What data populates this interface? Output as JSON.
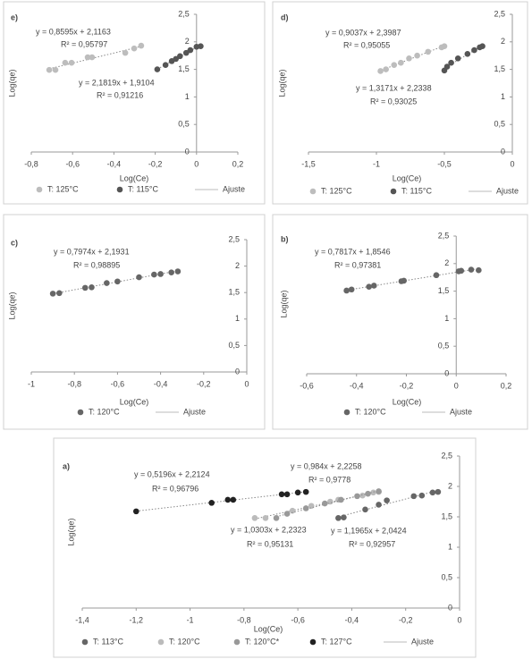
{
  "chart_data": [
    {
      "type": "scatter",
      "panel_label": "e)",
      "xlabel": "Log(Ce)",
      "ylabel": "Log(qe)",
      "xlim": [
        -0.8,
        0.2
      ],
      "ylim": [
        0,
        2.5
      ],
      "xticks": [
        {
          "value": -0.8,
          "label": "-0,8"
        },
        {
          "value": -0.6,
          "label": "-0,6"
        },
        {
          "value": -0.4,
          "label": "-0,4"
        },
        {
          "value": -0.2,
          "label": "-0,2"
        },
        0,
        {
          "value": 0.2,
          "label": "0,2"
        }
      ],
      "yticks": [
        0,
        {
          "value": 0.5,
          "label": "0,5"
        },
        1,
        {
          "value": 1.5,
          "label": "1,5"
        },
        2,
        {
          "value": 2.5,
          "label": "2,5"
        }
      ],
      "series": [
        {
          "name": "T: 125°C",
          "color": "#bdbdbd",
          "x": [
            -0.713,
            -0.683,
            -0.636,
            -0.605,
            -0.527,
            -0.506,
            -0.345,
            -0.302,
            -0.268
          ],
          "values": [
            1.49,
            1.49,
            1.62,
            1.62,
            1.72,
            1.72,
            1.8,
            1.88,
            1.93
          ]
        },
        {
          "name": "T: 115°C",
          "color": "#555555",
          "x": [
            -0.19,
            -0.15,
            -0.12,
            -0.1,
            -0.08,
            -0.05,
            -0.03,
            0,
            0.02
          ],
          "values": [
            1.5,
            1.58,
            1.65,
            1.69,
            1.74,
            1.8,
            1.85,
            1.91,
            1.92
          ]
        }
      ],
      "fit_name": "Ajuste",
      "annotations": [
        "y = 0,8595x + 2,1163",
        "R² = 0,95797",
        "y = 2,1819x + 1,9104",
        "R² = 0,91216"
      ]
    },
    {
      "type": "scatter",
      "panel_label": "d)",
      "xlabel": "Log(Ce)",
      "ylabel": "Log(qe)",
      "xlim": [
        -1.5,
        0
      ],
      "ylim": [
        0,
        2.5
      ],
      "xticks": [
        {
          "value": -1.5,
          "label": "-1,5"
        },
        -1,
        {
          "value": -0.5,
          "label": "-0,5"
        },
        0
      ],
      "yticks": [
        0,
        {
          "value": 0.5,
          "label": "0,5"
        },
        1,
        {
          "value": 1.5,
          "label": "1,5"
        },
        2,
        {
          "value": 2.5,
          "label": "2,5"
        }
      ],
      "series": [
        {
          "name": "T: 125°C",
          "color": "#bdbdbd",
          "x": [
            -0.97,
            -0.93,
            -0.87,
            -0.82,
            -0.76,
            -0.7,
            -0.62,
            -0.52,
            -0.5
          ],
          "values": [
            1.47,
            1.5,
            1.58,
            1.62,
            1.7,
            1.75,
            1.82,
            1.9,
            1.92
          ]
        },
        {
          "name": "T: 115°C",
          "color": "#555555",
          "x": [
            -0.5,
            -0.48,
            -0.45,
            -0.4,
            -0.33,
            -0.28,
            -0.24,
            -0.22
          ],
          "values": [
            1.48,
            1.55,
            1.62,
            1.7,
            1.78,
            1.85,
            1.9,
            1.92
          ]
        }
      ],
      "fit_name": "Ajuste",
      "annotations": [
        "y = 0,9037x + 2,3987",
        "R² = 0,95055",
        "y = 1,3171x + 2,2338",
        "R² = 0,93025"
      ]
    },
    {
      "type": "scatter",
      "panel_label": "c)",
      "xlabel": "Log(Ce)",
      "ylabel": "Log(qe)",
      "xlim": [
        -1,
        0
      ],
      "ylim": [
        0,
        2.5
      ],
      "xticks": [
        -1,
        {
          "value": -0.8,
          "label": "-0,8"
        },
        {
          "value": -0.6,
          "label": "-0,6"
        },
        {
          "value": -0.4,
          "label": "-0,4"
        },
        {
          "value": -0.2,
          "label": "-0,2"
        },
        0
      ],
      "yticks": [
        0,
        {
          "value": 0.5,
          "label": "0,5"
        },
        1,
        {
          "value": 1.5,
          "label": "1,5"
        },
        2,
        {
          "value": 2.5,
          "label": "2,5"
        }
      ],
      "series": [
        {
          "name": "T: 120°C",
          "color": "#666666",
          "x": [
            -0.9,
            -0.87,
            -0.75,
            -0.72,
            -0.65,
            -0.6,
            -0.5,
            -0.43,
            -0.4,
            -0.35,
            -0.32
          ],
          "values": [
            1.48,
            1.49,
            1.59,
            1.6,
            1.68,
            1.71,
            1.79,
            1.84,
            1.85,
            1.88,
            1.9
          ]
        }
      ],
      "fit_name": "Ajuste",
      "annotations": [
        "y = 0,7974x + 2,1931",
        "R² = 0,98895"
      ]
    },
    {
      "type": "scatter",
      "panel_label": "b)",
      "xlabel": "Log(Ce)",
      "ylabel": "Log(qe)",
      "xlim": [
        -0.6,
        0.2
      ],
      "ylim": [
        0,
        2.5
      ],
      "xticks": [
        {
          "value": -0.6,
          "label": "-0,6"
        },
        {
          "value": -0.4,
          "label": "-0,4"
        },
        {
          "value": -0.2,
          "label": "-0,2"
        },
        0,
        {
          "value": 0.2,
          "label": "0,2"
        }
      ],
      "yticks": [
        0,
        {
          "value": 0.5,
          "label": "0,5"
        },
        1,
        {
          "value": 1.5,
          "label": "1,5"
        },
        2,
        {
          "value": 2.5,
          "label": "2,5"
        }
      ],
      "series": [
        {
          "name": "T: 120°C",
          "color": "#666666",
          "x": [
            -0.44,
            -0.42,
            -0.35,
            -0.33,
            -0.22,
            -0.21,
            -0.08,
            0.01,
            0.02,
            0.06,
            0.09
          ],
          "values": [
            1.51,
            1.53,
            1.58,
            1.6,
            1.68,
            1.69,
            1.79,
            1.86,
            1.87,
            1.89,
            1.88
          ]
        }
      ],
      "fit_name": "Ajuste",
      "annotations": [
        "y = 0,7817x + 1,8546",
        "R² = 0,97381"
      ]
    },
    {
      "type": "scatter",
      "panel_label": "a)",
      "xlabel": "Log(Ce)",
      "ylabel": "Log(qe)",
      "xlim": [
        -1.4,
        0
      ],
      "ylim": [
        0,
        2.5
      ],
      "xticks": [
        {
          "value": -1.4,
          "label": "-1,4"
        },
        {
          "value": -1.2,
          "label": "-1,2"
        },
        -1,
        {
          "value": -0.8,
          "label": "-0,8"
        },
        {
          "value": -0.6,
          "label": "-0,6"
        },
        {
          "value": -0.4,
          "label": "-0,4"
        },
        {
          "value": -0.2,
          "label": "-0,2"
        },
        0
      ],
      "yticks": [
        0,
        {
          "value": 0.5,
          "label": "0,5"
        },
        1,
        {
          "value": 1.5,
          "label": "1,5"
        },
        2,
        {
          "value": 2.5,
          "label": "2,5"
        }
      ],
      "series": [
        {
          "name": "T: 113°C",
          "color": "#666666",
          "x": [
            -0.45,
            -0.43,
            -0.35,
            -0.3,
            -0.27,
            -0.17,
            -0.14,
            -0.1,
            -0.08
          ],
          "values": [
            1.48,
            1.49,
            1.62,
            1.7,
            1.77,
            1.84,
            1.85,
            1.9,
            1.91
          ]
        },
        {
          "name": "T: 120°C",
          "color": "#bbbbbb",
          "x": [
            -0.76,
            -0.72,
            -0.62,
            -0.55,
            -0.48,
            -0.45,
            -0.36,
            -0.32,
            -0.3
          ],
          "values": [
            1.48,
            1.48,
            1.6,
            1.68,
            1.75,
            1.78,
            1.85,
            1.9,
            1.91
          ]
        },
        {
          "name": "T: 120°C*",
          "color": "#999999",
          "x": [
            -0.68,
            -0.64,
            -0.57,
            -0.5,
            -0.44,
            -0.38,
            -0.34,
            -0.3
          ],
          "values": [
            1.48,
            1.55,
            1.64,
            1.72,
            1.78,
            1.84,
            1.88,
            1.92
          ]
        },
        {
          "name": "T: 127°C",
          "color": "#222222",
          "x": [
            -1.2,
            -0.92,
            -0.86,
            -0.84,
            -0.66,
            -0.64,
            -0.6,
            -0.57
          ],
          "values": [
            1.59,
            1.73,
            1.78,
            1.78,
            1.87,
            1.87,
            1.9,
            1.91
          ]
        }
      ],
      "fit_name": "Ajuste",
      "annotations": [
        "y = 0,5196x + 2,2124",
        "R² = 0,96796",
        "y = 0,984x + 2,2258",
        "R² = 0,9778",
        "y = 1,0303x + 2,2323",
        "R² = 0,95131",
        "y = 1,1965x + 2,0424",
        "R² = 0,92957"
      ]
    }
  ]
}
